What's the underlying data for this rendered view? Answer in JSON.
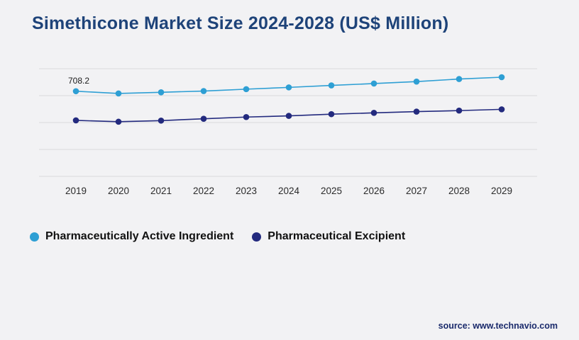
{
  "title": "Simethicone Market Size 2024-2028 (US$ Million)",
  "source": "source: www.technavio.com",
  "colors": {
    "title": "#1e4379",
    "background": "#f2f2f4",
    "gridline": "#d9d9dc",
    "axis_label": "#2b2b2b",
    "active_ingredient": "#2e9fd4",
    "excipient": "#232a7e",
    "source_text": "#1a2a6b"
  },
  "chart_data": {
    "type": "line",
    "title": "Simethicone Market Size 2024-2028 (US$ Million)",
    "xlabel": "",
    "ylabel": "US$ Million",
    "x": [
      "2019",
      "2020",
      "2021",
      "2022",
      "2023",
      "2024",
      "2025",
      "2026",
      "2027",
      "2028",
      "2029"
    ],
    "series": [
      {
        "name": "Pharmaceutically Active Ingredient",
        "color": "#2e9fd4",
        "values": [
          708.2,
          704.0,
          706.2,
          708.5,
          712.0,
          715.3,
          719.0,
          722.4,
          726.1,
          730.8,
          734.2
        ]
      },
      {
        "name": "Pharmaceutical Excipient",
        "color": "#232a7e",
        "values": [
          654.0,
          651.5,
          653.6,
          657.0,
          660.2,
          662.4,
          665.6,
          668.0,
          670.3,
          672.2,
          674.5
        ]
      }
    ],
    "ylim": [
      550,
      750
    ],
    "gridlines": [
      550,
      600,
      650,
      700,
      750
    ],
    "y_tick_labels_visible": false,
    "grid": "horizontal",
    "legend_position": "bottom-left",
    "annotations": [
      {
        "text": "708.2",
        "series": 0,
        "index": 0
      }
    ]
  },
  "legend": {
    "items": [
      {
        "label": "Pharmaceutically Active Ingredient",
        "color": "#2e9fd4"
      },
      {
        "label": "Pharmaceutical Excipient",
        "color": "#232a7e"
      }
    ]
  }
}
